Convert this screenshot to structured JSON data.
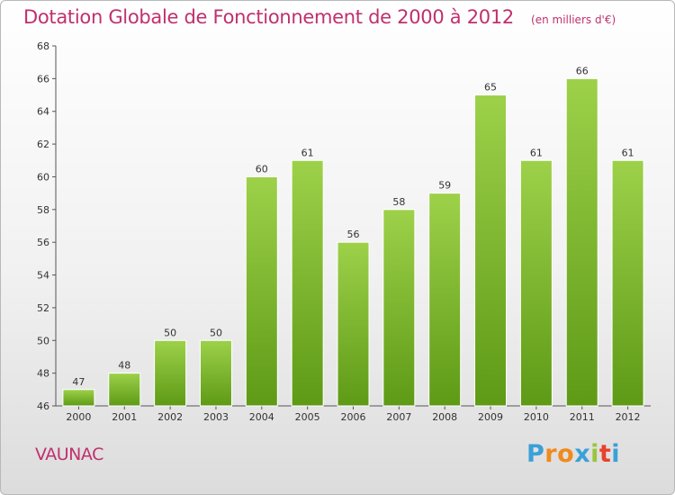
{
  "header": {
    "title": "Dotation Globale de Fonctionnement de 2000 à 2012",
    "subtitle": "(en milliers d'€)"
  },
  "commune": "VAUNAC",
  "logo": {
    "letters": [
      "P",
      "r",
      "o",
      "x",
      "i",
      "t",
      "i"
    ],
    "colors": [
      "#3aa0d8",
      "#f08a1e",
      "#f08a1e",
      "#3aa0d8",
      "#9bc53d",
      "#e8412c",
      "#3aa0d8"
    ]
  },
  "chart_data": {
    "type": "bar",
    "title": "Dotation Globale de Fonctionnement de 2000 à 2012",
    "subtitle": "(en milliers d'€)",
    "categories": [
      "2000",
      "2001",
      "2002",
      "2003",
      "2004",
      "2005",
      "2006",
      "2007",
      "2008",
      "2009",
      "2010",
      "2011",
      "2012"
    ],
    "values": [
      47,
      48,
      50,
      50,
      60,
      61,
      56,
      58,
      59,
      65,
      61,
      66,
      61
    ],
    "ylim": [
      46,
      68
    ],
    "yticks": [
      46,
      48,
      50,
      52,
      54,
      56,
      58,
      60,
      62,
      64,
      66,
      68
    ],
    "grid": false,
    "bar_color": "#7cb82f"
  }
}
